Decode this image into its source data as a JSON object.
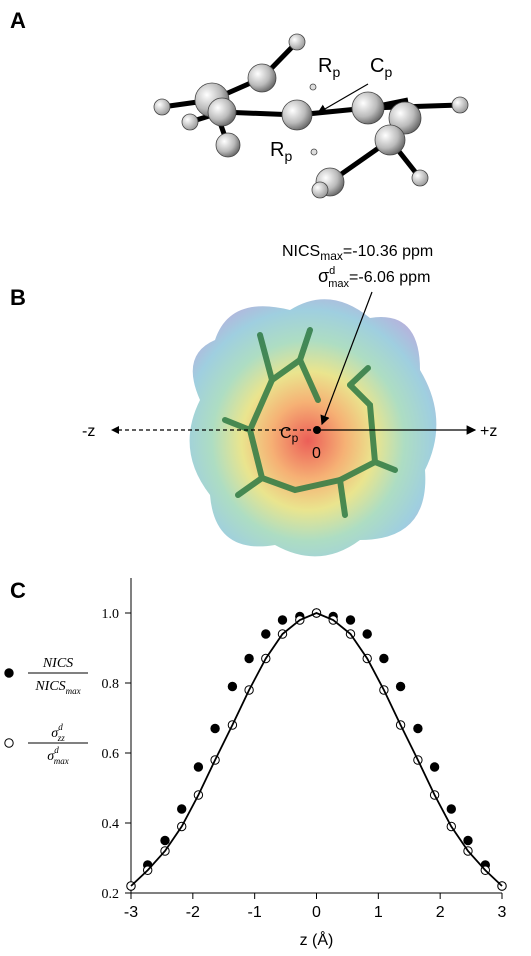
{
  "panel_a": {
    "label": "A",
    "r_upper": {
      "main": "R",
      "sub": "p"
    },
    "c": {
      "main": "C",
      "sub": "p"
    },
    "r_lower": {
      "main": "R",
      "sub": "p"
    }
  },
  "panel_b": {
    "label": "B",
    "nics": {
      "main": "NICS",
      "sub": "max",
      "rest": "=-10.36 ppm"
    },
    "sigma": {
      "main": "σ",
      "sup": "d",
      "sub": "max",
      "rest": "=-6.06 ppm"
    },
    "axis_left": "-z",
    "axis_right": "+z",
    "c": {
      "main": "C",
      "sub": "p"
    },
    "origin": "0"
  },
  "chart_data": {
    "type": "scatter",
    "panel_label": "C",
    "x_label": "z (Å)",
    "x": [
      -3,
      -2.73,
      -2.45,
      -2.18,
      -1.91,
      -1.64,
      -1.36,
      -1.09,
      -0.82,
      -0.55,
      -0.27,
      0,
      0.27,
      0.55,
      0.82,
      1.09,
      1.36,
      1.64,
      1.91,
      2.18,
      2.45,
      2.73,
      3
    ],
    "series": [
      {
        "legend": {
          "num": "NICS",
          "den": "NICS",
          "den_sub": "max"
        },
        "color": "#000000",
        "marker": "filled",
        "values": [
          0.22,
          0.28,
          0.35,
          0.44,
          0.56,
          0.67,
          0.79,
          0.87,
          0.94,
          0.98,
          0.99,
          1.0,
          0.99,
          0.98,
          0.94,
          0.87,
          0.79,
          0.67,
          0.56,
          0.44,
          0.35,
          0.28,
          0.22
        ]
      },
      {
        "legend": {
          "num": "σ",
          "num_sup": "d",
          "num_sub": "zz",
          "den": "σ",
          "den_sup": "d",
          "den_sub": "max"
        },
        "color": "#000000",
        "marker": "open",
        "values": [
          0.22,
          0.265,
          0.32,
          0.39,
          0.48,
          0.58,
          0.68,
          0.78,
          0.87,
          0.94,
          0.98,
          1.0,
          0.98,
          0.94,
          0.87,
          0.78,
          0.68,
          0.58,
          0.48,
          0.39,
          0.32,
          0.265,
          0.22
        ]
      },
      {
        "color": "#000000",
        "marker": "line",
        "values": [
          0.22,
          0.265,
          0.32,
          0.39,
          0.48,
          0.58,
          0.68,
          0.78,
          0.87,
          0.94,
          0.98,
          1.0,
          0.98,
          0.94,
          0.87,
          0.78,
          0.68,
          0.58,
          0.48,
          0.39,
          0.32,
          0.265,
          0.22
        ]
      }
    ],
    "xlim": [
      -3,
      3
    ],
    "ylim": [
      0.2,
      1.1
    ],
    "xticks": [
      -3,
      -2,
      -1,
      0,
      1,
      2,
      3
    ],
    "yticks": [
      0.2,
      0.4,
      0.6,
      0.8,
      {
        "value": 1,
        "label": "1.0"
      }
    ]
  }
}
